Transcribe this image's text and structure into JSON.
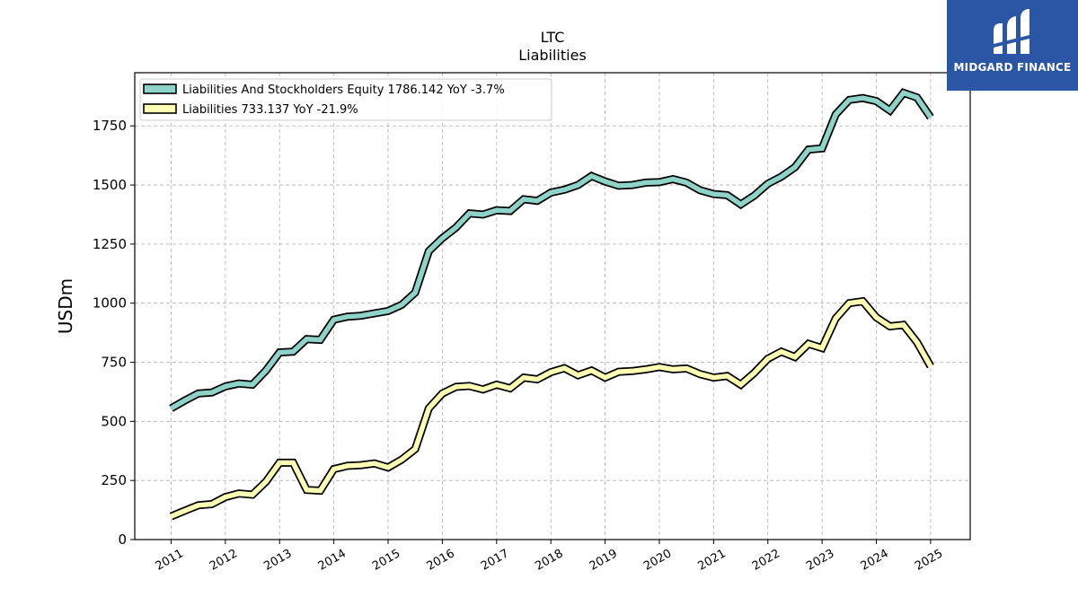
{
  "brand": {
    "name": "MIDGARD FINANCE",
    "logo_icon": "midgard-m-logo-icon",
    "color": "#2b56a6"
  },
  "chart_data": {
    "type": "line",
    "title": "LTC",
    "subtitle": "Liabilities",
    "ylabel": "USDm",
    "xlabel": "",
    "ylim": [
      0,
      1975
    ],
    "xlim": [
      2010.33,
      2025.73
    ],
    "yticks": [
      0,
      250,
      500,
      750,
      1000,
      1250,
      1500,
      1750
    ],
    "ytick_labels": [
      "0",
      "250",
      "500",
      "750",
      "1000",
      "1250",
      "1500",
      "1750"
    ],
    "xticks": [
      2011,
      2012,
      2013,
      2014,
      2015,
      2016,
      2017,
      2018,
      2019,
      2020,
      2021,
      2022,
      2023,
      2024,
      2025
    ],
    "xtick_labels": [
      "2011",
      "2012",
      "2013",
      "2014",
      "2015",
      "2016",
      "2017",
      "2018",
      "2019",
      "2020",
      "2021",
      "2022",
      "2023",
      "2024",
      "2025"
    ],
    "grid": true,
    "legend_position": "top-left",
    "series": [
      {
        "name": "Liabilities And Stockholders Equity",
        "legend_label": "Liabilities And Stockholders Equity  1786.142 YoY -3.7%",
        "color": "#8ed3c7",
        "points": [
          [
            2011.0,
            555
          ],
          [
            2011.25,
            588
          ],
          [
            2011.5,
            618
          ],
          [
            2011.75,
            622
          ],
          [
            2012.0,
            648
          ],
          [
            2012.25,
            660
          ],
          [
            2012.5,
            655
          ],
          [
            2012.75,
            715
          ],
          [
            2013.0,
            792
          ],
          [
            2013.25,
            795
          ],
          [
            2013.5,
            848
          ],
          [
            2013.75,
            845
          ],
          [
            2014.0,
            930
          ],
          [
            2014.25,
            943
          ],
          [
            2014.5,
            947
          ],
          [
            2014.75,
            957
          ],
          [
            2015.0,
            967
          ],
          [
            2015.25,
            993
          ],
          [
            2015.5,
            1045
          ],
          [
            2015.75,
            1220
          ],
          [
            2016.0,
            1275
          ],
          [
            2016.25,
            1320
          ],
          [
            2016.5,
            1380
          ],
          [
            2016.75,
            1375
          ],
          [
            2017.0,
            1393
          ],
          [
            2017.25,
            1390
          ],
          [
            2017.5,
            1440
          ],
          [
            2017.75,
            1433
          ],
          [
            2018.0,
            1468
          ],
          [
            2018.25,
            1480
          ],
          [
            2018.5,
            1500
          ],
          [
            2018.75,
            1538
          ],
          [
            2019.0,
            1515
          ],
          [
            2019.25,
            1497
          ],
          [
            2019.5,
            1500
          ],
          [
            2019.75,
            1510
          ],
          [
            2020.0,
            1512
          ],
          [
            2020.25,
            1525
          ],
          [
            2020.5,
            1510
          ],
          [
            2020.75,
            1478
          ],
          [
            2021.0,
            1462
          ],
          [
            2021.25,
            1457
          ],
          [
            2021.5,
            1418
          ],
          [
            2021.75,
            1455
          ],
          [
            2022.0,
            1505
          ],
          [
            2022.25,
            1535
          ],
          [
            2022.5,
            1575
          ],
          [
            2022.75,
            1650
          ],
          [
            2023.0,
            1655
          ],
          [
            2023.25,
            1798
          ],
          [
            2023.5,
            1860
          ],
          [
            2023.75,
            1868
          ],
          [
            2024.0,
            1855
          ],
          [
            2024.25,
            1815
          ],
          [
            2024.5,
            1890
          ],
          [
            2024.75,
            1870
          ],
          [
            2025.0,
            1786.142
          ]
        ]
      },
      {
        "name": "Liabilities",
        "legend_label": "Liabilities  733.137 YoY -21.9%",
        "color": "#ffffb3",
        "points": [
          [
            2011.0,
            98
          ],
          [
            2011.25,
            122
          ],
          [
            2011.5,
            145
          ],
          [
            2011.75,
            150
          ],
          [
            2012.0,
            180
          ],
          [
            2012.25,
            195
          ],
          [
            2012.5,
            190
          ],
          [
            2012.75,
            245
          ],
          [
            2013.0,
            325
          ],
          [
            2013.25,
            325
          ],
          [
            2013.5,
            210
          ],
          [
            2013.75,
            207
          ],
          [
            2014.0,
            298
          ],
          [
            2014.25,
            312
          ],
          [
            2014.5,
            315
          ],
          [
            2014.75,
            322
          ],
          [
            2015.0,
            305
          ],
          [
            2015.25,
            338
          ],
          [
            2015.5,
            383
          ],
          [
            2015.75,
            555
          ],
          [
            2016.0,
            618
          ],
          [
            2016.25,
            646
          ],
          [
            2016.5,
            650
          ],
          [
            2016.75,
            635
          ],
          [
            2017.0,
            655
          ],
          [
            2017.25,
            640
          ],
          [
            2017.5,
            685
          ],
          [
            2017.75,
            678
          ],
          [
            2018.0,
            708
          ],
          [
            2018.25,
            725
          ],
          [
            2018.5,
            695
          ],
          [
            2018.75,
            715
          ],
          [
            2019.0,
            685
          ],
          [
            2019.25,
            710
          ],
          [
            2019.5,
            713
          ],
          [
            2019.75,
            720
          ],
          [
            2020.0,
            730
          ],
          [
            2020.25,
            720
          ],
          [
            2020.5,
            724
          ],
          [
            2020.75,
            700
          ],
          [
            2021.0,
            685
          ],
          [
            2021.25,
            692
          ],
          [
            2021.5,
            655
          ],
          [
            2021.75,
            705
          ],
          [
            2022.0,
            765
          ],
          [
            2022.25,
            795
          ],
          [
            2022.5,
            772
          ],
          [
            2022.75,
            828
          ],
          [
            2023.0,
            810
          ],
          [
            2023.25,
            935
          ],
          [
            2023.5,
            1000
          ],
          [
            2023.75,
            1008
          ],
          [
            2024.0,
            940
          ],
          [
            2024.25,
            902
          ],
          [
            2024.5,
            908
          ],
          [
            2024.75,
            835
          ],
          [
            2025.0,
            733.137
          ]
        ]
      }
    ]
  }
}
